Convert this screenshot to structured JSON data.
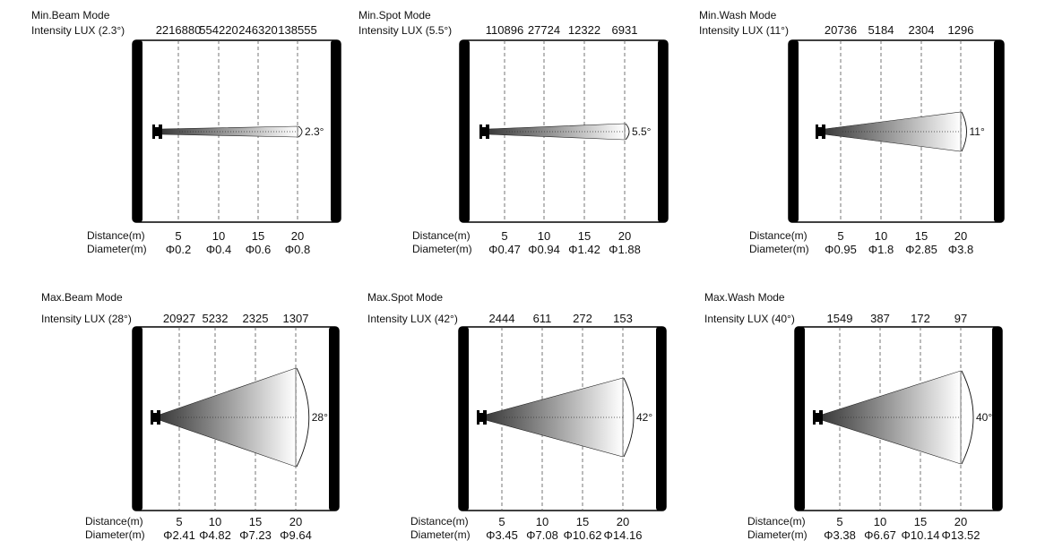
{
  "labels": {
    "distance": "Distance(m)",
    "diameter": "Diameter(m)"
  },
  "colors": {
    "frame": "#000000",
    "beam_start": "#3a3a3a",
    "beam_end": "#ffffff"
  },
  "icons": {
    "fixture": "light-fixture-icon"
  },
  "panels": [
    {
      "title": "Min.Beam Mode",
      "intensity_label": "Intensity LUX (2.3°)",
      "angle_label": "2.3°",
      "beam_angle_deg": 2.3,
      "lux": [
        "2216880",
        "554220",
        "246320",
        "138555"
      ],
      "distances": [
        "5",
        "10",
        "15",
        "20"
      ],
      "diameters": [
        "Φ0.2",
        "Φ0.4",
        "Φ0.6",
        "Φ0.8"
      ]
    },
    {
      "title": "Min.Spot Mode",
      "intensity_label": "Intensity LUX (5.5°)",
      "angle_label": "5.5°",
      "beam_angle_deg": 5.5,
      "lux": [
        "110896",
        "27724",
        "12322",
        "6931"
      ],
      "distances": [
        "5",
        "10",
        "15",
        "20"
      ],
      "diameters": [
        "Φ0.47",
        "Φ0.94",
        "Φ1.42",
        "Φ1.88"
      ]
    },
    {
      "title": "Min.Wash Mode",
      "intensity_label": "Intensity LUX (11°)",
      "angle_label": "11°",
      "beam_angle_deg": 11,
      "lux": [
        "20736",
        "5184",
        "2304",
        "1296"
      ],
      "distances": [
        "5",
        "10",
        "15",
        "20"
      ],
      "diameters": [
        "Φ0.95",
        "Φ1.8",
        "Φ2.85",
        "Φ3.8"
      ]
    },
    {
      "title": "Max.Beam Mode",
      "intensity_label": "Intensity LUX (28°)",
      "angle_label": "28°",
      "beam_angle_deg": 28,
      "lux": [
        "20927",
        "5232",
        "2325",
        "1307"
      ],
      "distances": [
        "5",
        "10",
        "15",
        "20"
      ],
      "diameters": [
        "Φ2.41",
        "Φ4.82",
        "Φ7.23",
        "Φ9.64"
      ]
    },
    {
      "title": "Max.Spot Mode",
      "intensity_label": "Intensity LUX (42°)",
      "angle_label": "42°",
      "beam_angle_deg": 42,
      "lux": [
        "2444",
        "611",
        "272",
        "153"
      ],
      "distances": [
        "5",
        "10",
        "15",
        "20"
      ],
      "diameters": [
        "Φ3.45",
        "Φ7.08",
        "Φ10.62",
        "Φ14.16"
      ]
    },
    {
      "title": "Max.Wash Mode",
      "intensity_label": "Intensity LUX (40°)",
      "angle_label": "40°",
      "beam_angle_deg": 40,
      "lux": [
        "1549",
        "387",
        "172",
        "97"
      ],
      "distances": [
        "5",
        "10",
        "15",
        "20"
      ],
      "diameters": [
        "Φ3.38",
        "Φ6.67",
        "Φ10.14",
        "Φ13.52"
      ]
    }
  ]
}
